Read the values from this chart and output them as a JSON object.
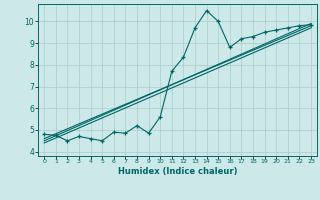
{
  "xlabel": "Humidex (Indice chaleur)",
  "background_color": "#cce8e8",
  "grid_color": "#aacccc",
  "line_color": "#006666",
  "xlim": [
    -0.5,
    23.5
  ],
  "ylim": [
    3.8,
    10.8
  ],
  "xticks": [
    0,
    1,
    2,
    3,
    4,
    5,
    6,
    7,
    8,
    9,
    10,
    11,
    12,
    13,
    14,
    15,
    16,
    17,
    18,
    19,
    20,
    21,
    22,
    23
  ],
  "yticks": [
    4,
    5,
    6,
    7,
    8,
    9,
    10
  ],
  "main_x": [
    0,
    1,
    2,
    3,
    4,
    5,
    6,
    7,
    8,
    9,
    10,
    11,
    12,
    13,
    14,
    15,
    16,
    17,
    18,
    19,
    20,
    21,
    22,
    23
  ],
  "main_y": [
    4.8,
    4.75,
    4.5,
    4.7,
    4.6,
    4.5,
    4.9,
    4.85,
    5.2,
    4.85,
    5.6,
    7.7,
    8.35,
    9.7,
    10.5,
    10.0,
    8.8,
    9.2,
    9.3,
    9.5,
    9.6,
    9.7,
    9.8,
    9.85
  ],
  "trend1_x": [
    0,
    23
  ],
  "trend1_y": [
    4.6,
    9.8
  ],
  "trend2_x": [
    0,
    23
  ],
  "trend2_y": [
    4.4,
    9.7
  ],
  "trend3_x": [
    0,
    23
  ],
  "trend3_y": [
    4.5,
    9.9
  ]
}
